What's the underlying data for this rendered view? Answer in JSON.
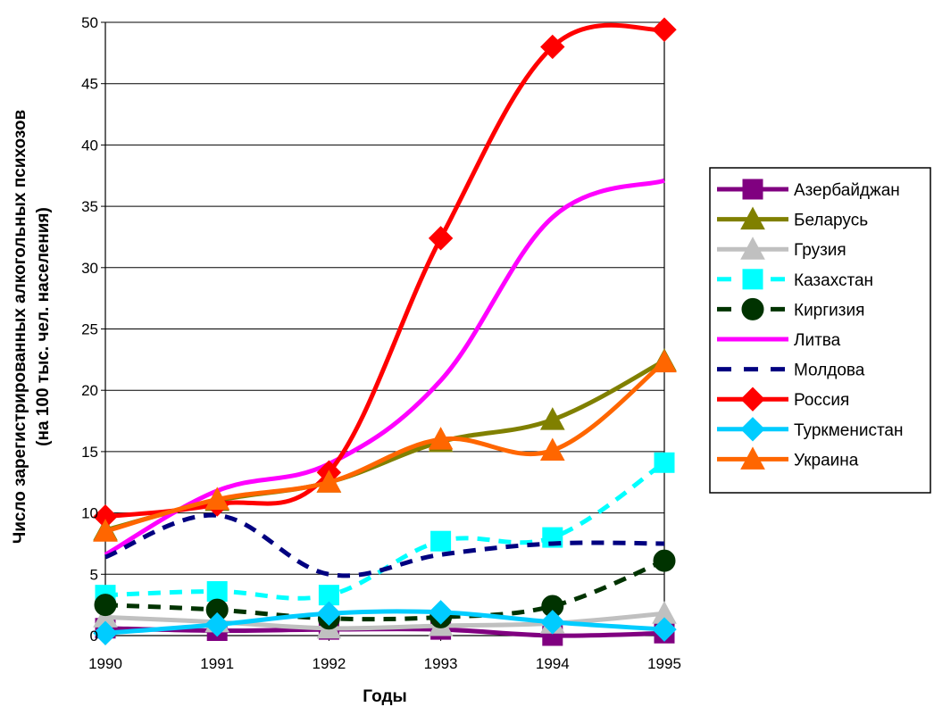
{
  "chart_data": {
    "type": "line",
    "title": "",
    "xlabel": "Годы",
    "ylabel_line1": "Число зарегистрированных алкогольных психозов",
    "ylabel_line2": "(на 100 тыс. чел. населения)",
    "x": [
      "1990",
      "1991",
      "1992",
      "1993",
      "1994",
      "1995"
    ],
    "ylim": [
      0,
      50
    ],
    "yticks": [
      "0",
      "5",
      "10",
      "15",
      "20",
      "25",
      "30",
      "35",
      "40",
      "45",
      "50"
    ],
    "grid": "horizontal",
    "legend": "right",
    "series": [
      {
        "name": "Азербайджан",
        "values": [
          0.6,
          0.4,
          0.5,
          0.5,
          0.0,
          0.2
        ],
        "color": "#800080",
        "dash": "solid",
        "marker": "square"
      },
      {
        "name": "Беларусь",
        "values": [
          8.6,
          11.0,
          12.5,
          15.8,
          17.6,
          22.4
        ],
        "color": "#808000",
        "dash": "solid",
        "marker": "triangle"
      },
      {
        "name": "Грузия",
        "values": [
          1.5,
          1.1,
          0.6,
          0.8,
          1.0,
          1.8
        ],
        "color": "#c0c0c0",
        "dash": "solid",
        "marker": "triangle"
      },
      {
        "name": "Казахстан",
        "values": [
          3.3,
          3.6,
          3.3,
          7.7,
          8.0,
          14.1
        ],
        "color": "#00ffff",
        "dash": "dash",
        "marker": "square"
      },
      {
        "name": "Киргизия",
        "values": [
          2.5,
          2.1,
          1.4,
          1.5,
          2.4,
          6.1
        ],
        "color": "#003300",
        "dash": "dash",
        "marker": "circle"
      },
      {
        "name": "Литва",
        "values": [
          6.6,
          11.8,
          14.0,
          20.8,
          34.1,
          37.1
        ],
        "color": "#ff00ff",
        "dash": "solid",
        "marker": "none"
      },
      {
        "name": "Молдова",
        "values": [
          6.4,
          9.8,
          5.0,
          6.6,
          7.5,
          7.5
        ],
        "color": "#000080",
        "dash": "dash",
        "marker": "none"
      },
      {
        "name": "Россия",
        "values": [
          9.7,
          10.7,
          13.3,
          32.4,
          48.0,
          49.4
        ],
        "color": "#ff0000",
        "dash": "solid",
        "marker": "diamond"
      },
      {
        "name": "Туркменистан",
        "values": [
          0.2,
          0.9,
          1.8,
          1.9,
          1.1,
          0.5
        ],
        "color": "#00ccff",
        "dash": "solid",
        "marker": "diamond"
      },
      {
        "name": "Украина",
        "values": [
          8.5,
          11.1,
          12.5,
          16.0,
          15.1,
          22.3
        ],
        "color": "#ff6600",
        "dash": "solid",
        "marker": "triangle"
      }
    ]
  }
}
